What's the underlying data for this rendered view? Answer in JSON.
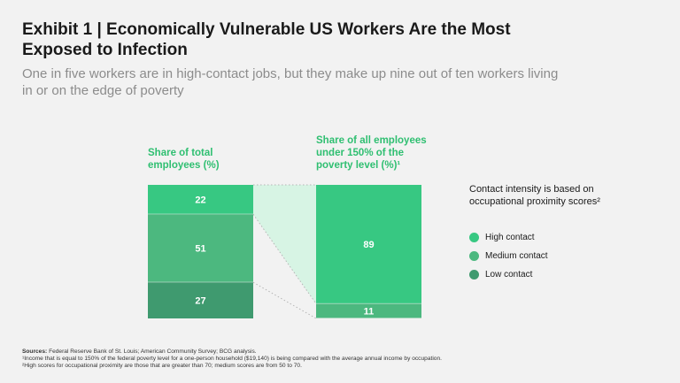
{
  "title": "Exhibit 1 | Economically Vulnerable US Workers Are the Most Exposed to Infection",
  "subtitle": "One in five workers are in high-contact jobs, but they make up nine out of ten workers living in or on the edge of poverty",
  "colors": {
    "high": "#37c882",
    "medium": "#4cb87f",
    "low": "#3f9a6f",
    "connector": "#d7f4e4",
    "accent_text": "#2fbf71"
  },
  "chart_data": {
    "type": "bar",
    "stacked": true,
    "unit": "%",
    "categories": [
      "Share of total employees (%)",
      "Share of all employees under 150% of the poverty level (%)¹"
    ],
    "series": [
      {
        "name": "High contact",
        "values": [
          22,
          89
        ]
      },
      {
        "name": "Medium contact",
        "values": [
          51,
          11
        ]
      },
      {
        "name": "Low contact",
        "values": [
          27,
          0
        ]
      }
    ],
    "ylim": [
      0,
      100
    ]
  },
  "columns": {
    "left_header_line1": "Share of total",
    "left_header_line2": "employees (%)",
    "right_header_line1": "Share of all employees",
    "right_header_line2": "under 150% of the",
    "right_header_line3": "poverty level (%)¹"
  },
  "legend": {
    "title": "Contact intensity is based on occupational proximity scores²",
    "items": [
      {
        "label": "High contact",
        "icon": "circle-icon"
      },
      {
        "label": "Medium contact",
        "icon": "circle-icon"
      },
      {
        "label": "Low contact",
        "icon": "circle-icon"
      }
    ]
  },
  "footer": {
    "sources_label": "Sources:",
    "sources_text": "Federal Reserve Bank of St. Louis; American Community Survey; BCG analysis.",
    "note1": "¹Income that is equal to 150% of the federal poverty level for a one-person household ($19,140) is being compared with the average annual income by occupation.",
    "note2": "²High scores for occupational proximity are those that are greater than 70; medium scores are from 50 to 70."
  }
}
